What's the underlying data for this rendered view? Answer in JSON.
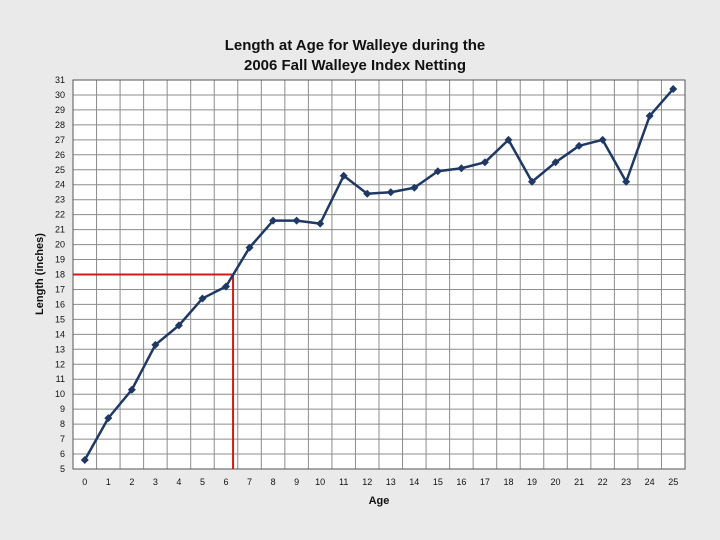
{
  "chart_data": {
    "type": "line",
    "title_lines": [
      "Length at Age for Walleye during the",
      "2006 Fall Walleye Index Netting"
    ],
    "xlabel": "Age",
    "ylabel": "Length (inches)",
    "xlim": [
      0,
      25
    ],
    "ylim": [
      5,
      31
    ],
    "grid": true,
    "legend": "none",
    "series": [
      {
        "color": "#1f3864",
        "marker": "diamond",
        "x": [
          0,
          1,
          2,
          3,
          4,
          5,
          6,
          7,
          8,
          9,
          10,
          11,
          12,
          13,
          14,
          15,
          16,
          17,
          18,
          19,
          20,
          21,
          22,
          23,
          24,
          25
        ],
        "y": [
          5.6,
          8.4,
          10.3,
          13.3,
          14.6,
          16.4,
          17.2,
          19.8,
          21.6,
          21.6,
          21.4,
          24.6,
          23.4,
          23.5,
          23.8,
          24.9,
          25.1,
          25.5,
          27.0,
          24.2,
          25.5,
          26.6,
          27.0,
          24.2,
          28.6,
          30.4
        ]
      }
    ],
    "reference_lines": {
      "color": "#d0191a",
      "length_value": 18,
      "age_value": 6.3
    }
  }
}
